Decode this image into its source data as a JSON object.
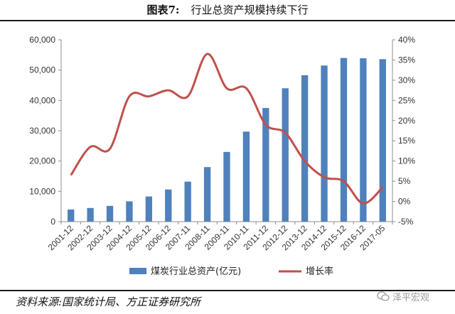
{
  "caption": {
    "label": "图表7:",
    "text": "行业总资产规模持续下行"
  },
  "source": "资料来源:国家统计局、方正证券研究所",
  "watermark": {
    "icon": "wechat-icon",
    "text": "泽平宏观"
  },
  "colors": {
    "bar": "#4f81bd",
    "line": "#c0504d"
  },
  "chart_data": {
    "type": "bar",
    "categories": [
      "2001-12",
      "2002-12",
      "2003-12",
      "2004-12",
      "2005-12",
      "2006-12",
      "2007-11",
      "2008-11",
      "2009-11",
      "2010-11",
      "2011-12",
      "2012-12",
      "2013-12",
      "2014-12",
      "2015-12",
      "2016-12",
      "2017-05"
    ],
    "series": [
      {
        "name": "煤炭行业总资产(亿元)",
        "type": "bar",
        "axis": "left",
        "values": [
          4000,
          4500,
          5200,
          6700,
          8300,
          10600,
          13200,
          18000,
          23000,
          29700,
          37500,
          44000,
          48300,
          51500,
          54000,
          53900,
          53600
        ]
      },
      {
        "name": "增长率",
        "type": "line",
        "axis": "right",
        "values": [
          6.5,
          13.5,
          13.0,
          26.0,
          26.0,
          27.5,
          26.0,
          36.5,
          28.0,
          28.0,
          19.0,
          17.0,
          10.0,
          6.0,
          5.0,
          -0.5,
          3.5
        ]
      }
    ],
    "yAxisLeft": {
      "ylim": [
        0,
        60000
      ],
      "ticks": [
        "0",
        "10,000",
        "20,000",
        "30,000",
        "40,000",
        "50,000",
        "60,000"
      ],
      "tickValues": [
        0,
        10000,
        20000,
        30000,
        40000,
        50000,
        60000
      ]
    },
    "yAxisRight": {
      "ylim": [
        -5,
        40
      ],
      "ticks": [
        "-5%",
        "0%",
        "5%",
        "10%",
        "15%",
        "20%",
        "25%",
        "30%",
        "35%",
        "40%"
      ],
      "tickValues": [
        -5,
        0,
        5,
        10,
        15,
        20,
        25,
        30,
        35,
        40
      ]
    },
    "grid": false,
    "legend": "bottom"
  }
}
